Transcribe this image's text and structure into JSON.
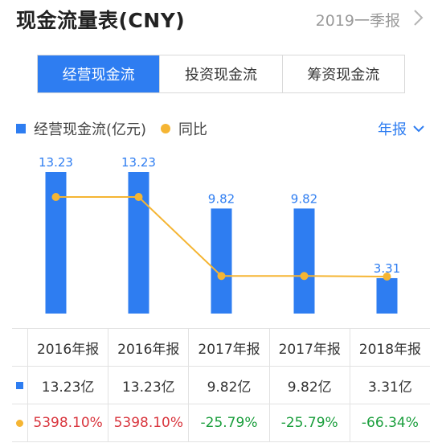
{
  "header": {
    "title": "现金流量表(CNY)",
    "period": "2019一季报"
  },
  "tabs": [
    {
      "label": "经营现金流",
      "active": true
    },
    {
      "label": "投资现金流",
      "active": false
    },
    {
      "label": "筹资现金流",
      "active": false
    }
  ],
  "legend": {
    "bar": "经营现金流(亿元)",
    "line": "同比"
  },
  "period_selector": "年报",
  "colors": {
    "bar": "#2e7df1",
    "line": "#f5b533",
    "positive": "#d9363e",
    "negative": "#1a9e3c"
  },
  "chart_data": {
    "type": "bar",
    "categories": [
      "2016年报",
      "2016年报",
      "2017年报",
      "2017年报",
      "2018年报"
    ],
    "series": [
      {
        "name": "经营现金流(亿元)",
        "values": [
          13.23,
          13.23,
          9.82,
          9.82,
          3.31
        ],
        "labels": [
          "13.23",
          "13.23",
          "9.82",
          "9.82",
          "3.31"
        ]
      },
      {
        "name": "同比",
        "type": "line",
        "values": [
          5398.1,
          5398.1,
          -25.79,
          -25.79,
          -66.34
        ]
      }
    ]
  },
  "table": {
    "headers": [
      "2016年报",
      "2016年报",
      "2017年报",
      "2017年报",
      "2018年报"
    ],
    "values": [
      "13.23亿",
      "13.23亿",
      "9.82亿",
      "9.82亿",
      "3.31亿"
    ],
    "yoy": [
      "5398.10%",
      "5398.10%",
      "-25.79%",
      "-25.79%",
      "-66.34%"
    ]
  }
}
